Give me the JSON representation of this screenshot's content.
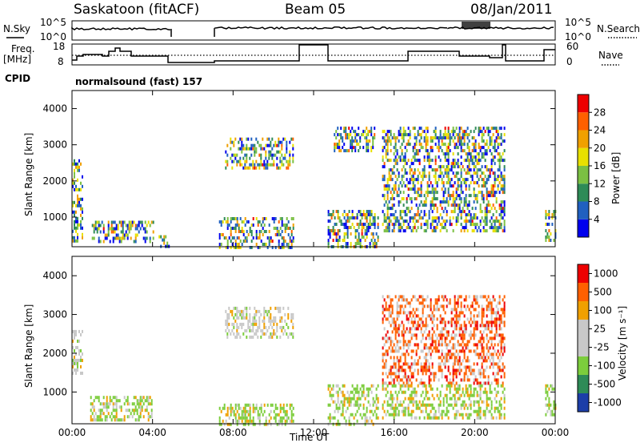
{
  "header": {
    "station": "Saskatoon (fitACF)",
    "beam": "Beam 05",
    "date": "08/Jan/2011"
  },
  "noise_panel": {
    "left_label": "N.Sky",
    "right_label": "N.Search",
    "left_ticks": [
      "10^5",
      "10^0"
    ],
    "right_ticks": [
      "10^5",
      "10^0"
    ]
  },
  "freq_panel": {
    "left_label_line1": "Freq.",
    "left_label_line2": "[MHz]",
    "right_label": "Nave",
    "left_ticks": [
      "18",
      "8"
    ],
    "right_ticks": [
      "60",
      "0"
    ]
  },
  "cpid": {
    "label": "CPID",
    "value": "normalsound (fast) 157"
  },
  "chart_data": [
    {
      "type": "heatmap",
      "name": "power",
      "ylabel": "Slant Range [km]",
      "ylim": [
        180,
        4500
      ],
      "yticks": [
        "1000",
        "2000",
        "3000",
        "4000"
      ],
      "xlim": [
        0,
        24
      ],
      "colorbar": {
        "label": "Power [dB]",
        "ticks": [
          "4",
          "8",
          "12",
          "16",
          "20",
          "24",
          "28"
        ],
        "colors": [
          "#0000ee",
          "#2060c0",
          "#2e8b57",
          "#7bc043",
          "#e8e000",
          "#f0a000",
          "#ff6000",
          "#ee0000"
        ]
      },
      "echo_regions": [
        {
          "t0": 0.0,
          "t1": 0.5,
          "r0": 300,
          "r1": 2600
        },
        {
          "t0": 0.9,
          "t1": 4.0,
          "r0": 300,
          "r1": 900
        },
        {
          "t0": 4.3,
          "t1": 4.8,
          "r0": 200,
          "r1": 500
        },
        {
          "t0": 7.3,
          "t1": 11.0,
          "r0": 200,
          "r1": 1000
        },
        {
          "t0": 7.6,
          "t1": 11.0,
          "r0": 2400,
          "r1": 3200
        },
        {
          "t0": 12.7,
          "t1": 15.2,
          "r0": 200,
          "r1": 1200
        },
        {
          "t0": 13.0,
          "t1": 15.0,
          "r0": 2800,
          "r1": 3500
        },
        {
          "t0": 15.4,
          "t1": 21.5,
          "r0": 600,
          "r1": 3500
        },
        {
          "t0": 23.5,
          "t1": 24.0,
          "r0": 400,
          "r1": 1200
        }
      ]
    },
    {
      "type": "heatmap",
      "name": "velocity",
      "ylabel": "Slant Range [km]",
      "ylim": [
        180,
        4500
      ],
      "yticks": [
        "1000",
        "2000",
        "3000",
        "4000"
      ],
      "xlim": [
        0,
        24
      ],
      "colorbar": {
        "label": "Velocity [m s⁻¹]",
        "ticks": [
          "1000",
          "500",
          "100",
          "25",
          "-25",
          "-100",
          "-500",
          "-1000"
        ],
        "colors": [
          "#1c3ea8",
          "#2e8b57",
          "#7ccd3c",
          "#c8c8c8",
          "#c8c8c8",
          "#f0a000",
          "#ff6000",
          "#ee0000"
        ]
      },
      "echo_regions": [
        {
          "t0": 0.0,
          "t1": 0.5,
          "r0": 1500,
          "r1": 2600
        },
        {
          "t0": 0.9,
          "t1": 4.0,
          "r0": 300,
          "r1": 900
        },
        {
          "t0": 7.3,
          "t1": 11.0,
          "r0": 200,
          "r1": 700
        },
        {
          "t0": 7.6,
          "t1": 11.0,
          "r0": 2400,
          "r1": 3200
        },
        {
          "t0": 12.7,
          "t1": 15.2,
          "r0": 200,
          "r1": 1200
        },
        {
          "t0": 15.4,
          "t1": 21.5,
          "r0": 1200,
          "r1": 3500
        },
        {
          "t0": 15.4,
          "t1": 21.5,
          "r0": 300,
          "r1": 1200
        },
        {
          "t0": 23.5,
          "t1": 24.0,
          "r0": 400,
          "r1": 1200
        }
      ]
    }
  ],
  "xaxis": {
    "ticks": [
      "00:00",
      "04:00",
      "08:00",
      "12:00",
      "16:00",
      "20:00",
      "00:00"
    ],
    "label": "Time UT"
  }
}
